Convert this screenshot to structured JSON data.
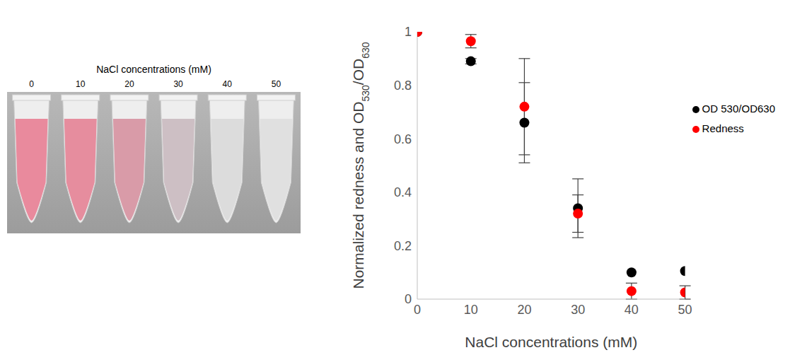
{
  "chart_data": {
    "type": "scatter",
    "x_label": "NaCl concentrations (mM)",
    "y_label": "Normalized redness and OD530/OD630",
    "xlim": [
      0,
      50
    ],
    "xticks": [
      0,
      10,
      20,
      30,
      40,
      50
    ],
    "ylim": [
      0,
      1
    ],
    "yticks": [
      0,
      0.2,
      0.4,
      0.6,
      0.8,
      1
    ],
    "grid": false,
    "legend": "upper right",
    "x": [
      0,
      10,
      20,
      30,
      40,
      50
    ],
    "series": [
      {
        "name": "OD 530/OD630",
        "color": "#000000",
        "marker": "circle",
        "values": [
          1.0,
          0.89,
          0.66,
          0.34,
          0.1,
          0.105
        ],
        "errors": [
          0,
          0.01,
          0.15,
          0.11,
          0,
          0
        ]
      },
      {
        "name": "Redness",
        "color": "#ff0000",
        "marker": "circle",
        "values": [
          1.0,
          0.965,
          0.72,
          0.32,
          0.03,
          0.025
        ],
        "errors": [
          0,
          0.025,
          0.18,
          0.07,
          0.03,
          0.025
        ]
      }
    ]
  },
  "photo": {
    "title": "NaCl concentrations (mM)",
    "labels": [
      0,
      10,
      20,
      30,
      40,
      50
    ],
    "colors": [
      "#e98a9d",
      "#e68d9e",
      "#d99ba8",
      "#cdbfc4",
      "#dcdcdc",
      "#e0e0e0"
    ]
  }
}
